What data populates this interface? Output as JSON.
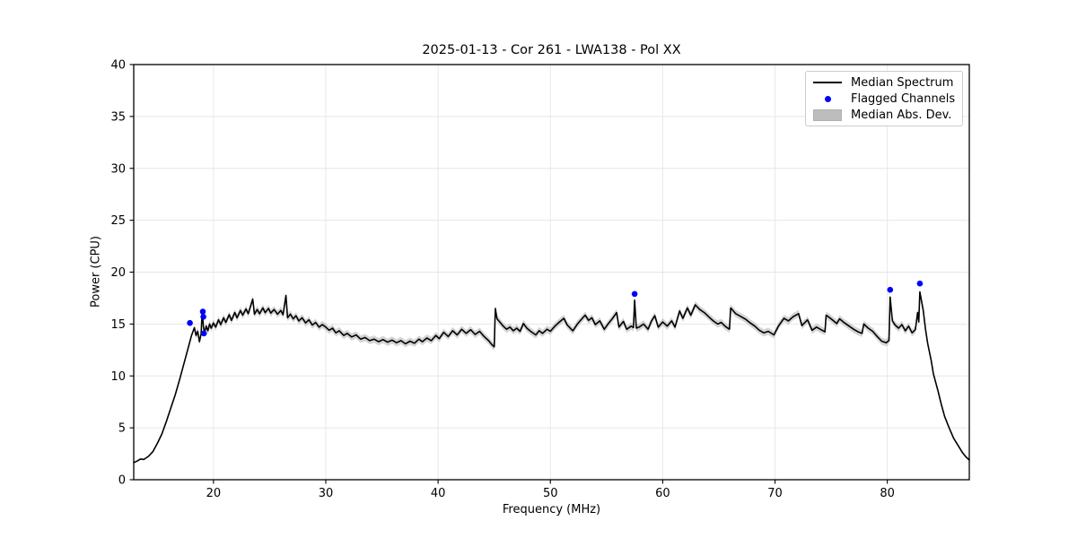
{
  "chart_data": {
    "type": "line",
    "title": "2025-01-13 - Cor 261 - LWA138 - Pol XX",
    "xlabel": "Frequency (MHz)",
    "ylabel": "Power (CPU)",
    "xlim": [
      12.9,
      87.3
    ],
    "ylim": [
      0,
      40
    ],
    "xticks": [
      20,
      30,
      40,
      50,
      60,
      70,
      80
    ],
    "yticks": [
      0,
      5,
      10,
      15,
      20,
      25,
      30,
      35,
      40
    ],
    "grid": true,
    "legend_position": "upper right",
    "colors": {
      "median_line": "#000000",
      "flagged": "#0000ff",
      "band": "#bdbdbd",
      "grid": "#e6e6e6",
      "spine": "#000000"
    },
    "series": [
      {
        "name": "Median Spectrum",
        "kind": "line",
        "points": [
          [
            12.9,
            1.65
          ],
          [
            13.2,
            1.8
          ],
          [
            13.5,
            2.0
          ],
          [
            13.8,
            1.95
          ],
          [
            14.2,
            2.25
          ],
          [
            14.6,
            2.7
          ],
          [
            15.0,
            3.5
          ],
          [
            15.4,
            4.4
          ],
          [
            15.8,
            5.6
          ],
          [
            16.2,
            6.9
          ],
          [
            16.6,
            8.2
          ],
          [
            17.0,
            9.7
          ],
          [
            17.4,
            11.3
          ],
          [
            17.8,
            12.9
          ],
          [
            18.05,
            13.9
          ],
          [
            18.3,
            14.65
          ],
          [
            18.45,
            13.9
          ],
          [
            18.6,
            14.3
          ],
          [
            18.75,
            13.3
          ],
          [
            18.9,
            14.05
          ],
          [
            19.0,
            16.3
          ],
          [
            19.1,
            14.8
          ],
          [
            19.2,
            14.1
          ],
          [
            19.35,
            14.8
          ],
          [
            19.5,
            14.35
          ],
          [
            19.65,
            15.0
          ],
          [
            19.8,
            14.6
          ],
          [
            20.0,
            15.1
          ],
          [
            20.2,
            14.7
          ],
          [
            20.45,
            15.4
          ],
          [
            20.65,
            14.95
          ],
          [
            20.9,
            15.6
          ],
          [
            21.1,
            15.15
          ],
          [
            21.4,
            15.9
          ],
          [
            21.6,
            15.35
          ],
          [
            21.9,
            16.1
          ],
          [
            22.1,
            15.6
          ],
          [
            22.4,
            16.3
          ],
          [
            22.6,
            15.85
          ],
          [
            22.9,
            16.45
          ],
          [
            23.1,
            16.0
          ],
          [
            23.5,
            17.4
          ],
          [
            23.65,
            15.95
          ],
          [
            23.9,
            16.4
          ],
          [
            24.1,
            16.0
          ],
          [
            24.4,
            16.55
          ],
          [
            24.6,
            16.1
          ],
          [
            24.9,
            16.5
          ],
          [
            25.1,
            16.05
          ],
          [
            25.4,
            16.4
          ],
          [
            25.7,
            15.95
          ],
          [
            26.0,
            16.3
          ],
          [
            26.2,
            15.9
          ],
          [
            26.45,
            17.75
          ],
          [
            26.6,
            15.6
          ],
          [
            26.85,
            15.95
          ],
          [
            27.1,
            15.5
          ],
          [
            27.35,
            15.8
          ],
          [
            27.6,
            15.3
          ],
          [
            27.9,
            15.6
          ],
          [
            28.2,
            15.1
          ],
          [
            28.5,
            15.4
          ],
          [
            28.8,
            14.9
          ],
          [
            29.1,
            15.15
          ],
          [
            29.4,
            14.7
          ],
          [
            29.7,
            14.95
          ],
          [
            30.0,
            14.7
          ],
          [
            30.3,
            14.4
          ],
          [
            30.6,
            14.6
          ],
          [
            30.9,
            14.15
          ],
          [
            31.2,
            14.35
          ],
          [
            31.6,
            13.9
          ],
          [
            31.9,
            14.1
          ],
          [
            32.3,
            13.75
          ],
          [
            32.7,
            13.95
          ],
          [
            33.1,
            13.55
          ],
          [
            33.5,
            13.7
          ],
          [
            33.9,
            13.4
          ],
          [
            34.3,
            13.55
          ],
          [
            34.7,
            13.3
          ],
          [
            35.1,
            13.5
          ],
          [
            35.5,
            13.25
          ],
          [
            35.9,
            13.45
          ],
          [
            36.3,
            13.2
          ],
          [
            36.7,
            13.4
          ],
          [
            37.1,
            13.1
          ],
          [
            37.5,
            13.35
          ],
          [
            37.9,
            13.15
          ],
          [
            38.3,
            13.55
          ],
          [
            38.6,
            13.3
          ],
          [
            39.0,
            13.65
          ],
          [
            39.4,
            13.4
          ],
          [
            39.8,
            13.9
          ],
          [
            40.1,
            13.6
          ],
          [
            40.5,
            14.2
          ],
          [
            40.9,
            13.8
          ],
          [
            41.3,
            14.35
          ],
          [
            41.7,
            13.95
          ],
          [
            42.1,
            14.5
          ],
          [
            42.5,
            14.1
          ],
          [
            42.9,
            14.45
          ],
          [
            43.3,
            14.0
          ],
          [
            43.7,
            14.3
          ],
          [
            44.1,
            13.8
          ],
          [
            44.5,
            13.4
          ],
          [
            44.8,
            13.0
          ],
          [
            45.0,
            12.8
          ],
          [
            45.1,
            16.5
          ],
          [
            45.25,
            15.5
          ],
          [
            45.5,
            15.2
          ],
          [
            45.8,
            14.8
          ],
          [
            46.1,
            14.5
          ],
          [
            46.4,
            14.7
          ],
          [
            46.7,
            14.35
          ],
          [
            47.0,
            14.6
          ],
          [
            47.3,
            14.3
          ],
          [
            47.6,
            15.05
          ],
          [
            47.9,
            14.6
          ],
          [
            48.3,
            14.25
          ],
          [
            48.7,
            13.95
          ],
          [
            49.0,
            14.35
          ],
          [
            49.3,
            14.1
          ],
          [
            49.7,
            14.5
          ],
          [
            50.0,
            14.3
          ],
          [
            50.4,
            14.8
          ],
          [
            50.8,
            15.2
          ],
          [
            51.2,
            15.55
          ],
          [
            51.5,
            14.9
          ],
          [
            52.0,
            14.35
          ],
          [
            52.4,
            15.0
          ],
          [
            52.8,
            15.5
          ],
          [
            53.1,
            15.85
          ],
          [
            53.4,
            15.35
          ],
          [
            53.7,
            15.6
          ],
          [
            54.0,
            14.95
          ],
          [
            54.4,
            15.3
          ],
          [
            54.8,
            14.5
          ],
          [
            55.2,
            15.1
          ],
          [
            55.5,
            15.5
          ],
          [
            55.9,
            16.1
          ],
          [
            56.1,
            14.7
          ],
          [
            56.5,
            15.25
          ],
          [
            56.8,
            14.5
          ],
          [
            57.2,
            14.8
          ],
          [
            57.4,
            14.65
          ],
          [
            57.5,
            17.3
          ],
          [
            57.65,
            14.6
          ],
          [
            57.9,
            14.7
          ],
          [
            58.3,
            15.0
          ],
          [
            58.7,
            14.5
          ],
          [
            59.0,
            15.3
          ],
          [
            59.3,
            15.8
          ],
          [
            59.6,
            14.7
          ],
          [
            60.0,
            15.2
          ],
          [
            60.4,
            14.8
          ],
          [
            60.8,
            15.3
          ],
          [
            61.1,
            14.7
          ],
          [
            61.5,
            16.25
          ],
          [
            61.8,
            15.55
          ],
          [
            62.2,
            16.55
          ],
          [
            62.5,
            15.85
          ],
          [
            62.9,
            16.85
          ],
          [
            63.3,
            16.4
          ],
          [
            63.7,
            16.1
          ],
          [
            64.1,
            15.7
          ],
          [
            64.5,
            15.3
          ],
          [
            64.9,
            15.0
          ],
          [
            65.2,
            15.15
          ],
          [
            65.6,
            14.75
          ],
          [
            65.95,
            14.5
          ],
          [
            66.05,
            16.55
          ],
          [
            66.5,
            16.0
          ],
          [
            67.0,
            15.7
          ],
          [
            67.4,
            15.45
          ],
          [
            67.8,
            15.1
          ],
          [
            68.2,
            14.8
          ],
          [
            68.6,
            14.4
          ],
          [
            69.0,
            14.15
          ],
          [
            69.4,
            14.3
          ],
          [
            69.9,
            13.95
          ],
          [
            70.3,
            14.8
          ],
          [
            70.8,
            15.55
          ],
          [
            71.2,
            15.3
          ],
          [
            71.6,
            15.7
          ],
          [
            72.1,
            16.0
          ],
          [
            72.4,
            14.85
          ],
          [
            72.9,
            15.4
          ],
          [
            73.3,
            14.4
          ],
          [
            73.7,
            14.7
          ],
          [
            74.1,
            14.45
          ],
          [
            74.45,
            14.25
          ],
          [
            74.55,
            15.85
          ],
          [
            75.0,
            15.5
          ],
          [
            75.5,
            15.05
          ],
          [
            75.75,
            15.5
          ],
          [
            76.2,
            15.1
          ],
          [
            76.6,
            14.8
          ],
          [
            77.0,
            14.5
          ],
          [
            77.4,
            14.25
          ],
          [
            77.75,
            14.1
          ],
          [
            77.9,
            15.0
          ],
          [
            78.3,
            14.6
          ],
          [
            78.7,
            14.3
          ],
          [
            79.1,
            13.8
          ],
          [
            79.5,
            13.35
          ],
          [
            79.9,
            13.2
          ],
          [
            80.15,
            13.4
          ],
          [
            80.25,
            17.6
          ],
          [
            80.45,
            15.3
          ],
          [
            80.7,
            14.9
          ],
          [
            81.0,
            14.6
          ],
          [
            81.3,
            14.95
          ],
          [
            81.6,
            14.35
          ],
          [
            81.9,
            14.8
          ],
          [
            82.2,
            14.15
          ],
          [
            82.5,
            14.45
          ],
          [
            82.7,
            16.1
          ],
          [
            82.8,
            15.2
          ],
          [
            82.9,
            18.1
          ],
          [
            83.2,
            16.3
          ],
          [
            83.4,
            14.5
          ],
          [
            83.6,
            13.1
          ],
          [
            83.9,
            11.5
          ],
          [
            84.1,
            10.2
          ],
          [
            84.5,
            8.6
          ],
          [
            84.8,
            7.3
          ],
          [
            85.1,
            6.1
          ],
          [
            85.5,
            5.0
          ],
          [
            85.9,
            4.0
          ],
          [
            86.3,
            3.3
          ],
          [
            86.7,
            2.6
          ],
          [
            87.0,
            2.2
          ],
          [
            87.3,
            1.9
          ]
        ]
      },
      {
        "name": "Flagged Channels",
        "kind": "scatter",
        "points": [
          [
            17.9,
            15.1
          ],
          [
            19.05,
            16.2
          ],
          [
            19.1,
            15.7
          ],
          [
            19.15,
            14.1
          ],
          [
            57.5,
            17.9
          ],
          [
            80.25,
            18.3
          ],
          [
            82.9,
            18.9
          ]
        ]
      },
      {
        "name": "Median Abs. Dev.",
        "kind": "band",
        "dev": 0.35,
        "range": [
          18.3,
          82.9
        ]
      }
    ]
  }
}
